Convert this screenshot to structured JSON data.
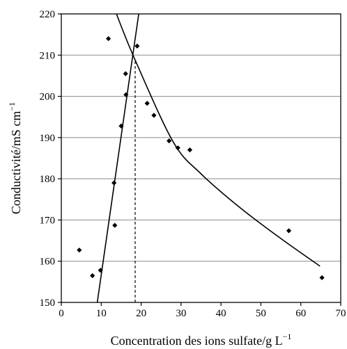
{
  "chart_data": {
    "type": "scatter",
    "xlabel": "Concentration des ions sulfate/g L",
    "xlabel_sup": "−1",
    "ylabel": "Conductivité/mS cm",
    "ylabel_sup": "−1",
    "xlim": [
      0,
      70
    ],
    "ylim": [
      150,
      220
    ],
    "xticks": [
      "0",
      "10",
      "20",
      "30",
      "40",
      "50",
      "60",
      "70"
    ],
    "yticks": [
      "150",
      "160",
      "170",
      "180",
      "190",
      "200",
      "210",
      "220"
    ],
    "grid": "horizontal",
    "points": [
      {
        "x": 4.5,
        "y": 162.7
      },
      {
        "x": 7.8,
        "y": 156.5
      },
      {
        "x": 9.8,
        "y": 157.8
      },
      {
        "x": 11.8,
        "y": 214.0
      },
      {
        "x": 13.2,
        "y": 179.0
      },
      {
        "x": 13.4,
        "y": 168.7
      },
      {
        "x": 15.0,
        "y": 192.8
      },
      {
        "x": 16.1,
        "y": 205.5
      },
      {
        "x": 16.2,
        "y": 200.4
      },
      {
        "x": 19.0,
        "y": 212.2
      },
      {
        "x": 21.5,
        "y": 198.3
      },
      {
        "x": 23.2,
        "y": 195.4
      },
      {
        "x": 27.0,
        "y": 189.2
      },
      {
        "x": 29.2,
        "y": 187.5
      },
      {
        "x": 32.2,
        "y": 187.0
      },
      {
        "x": 57.0,
        "y": 167.4
      },
      {
        "x": 65.3,
        "y": 156.0
      }
    ],
    "fits": [
      {
        "kind": "line",
        "points": [
          [
            9.0,
            150.0
          ],
          [
            19.4,
            220.0
          ]
        ]
      },
      {
        "kind": "curve",
        "points": [
          [
            13.8,
            220.0
          ],
          [
            18.5,
            208.8
          ],
          [
            28.0,
            189.0
          ],
          [
            35.0,
            181.2
          ],
          [
            45.0,
            172.8
          ],
          [
            55.0,
            165.5
          ],
          [
            64.8,
            158.8
          ]
        ]
      }
    ],
    "guide": {
      "x": 18.5,
      "y_from": 150,
      "y_to": 208.8,
      "style": "dashed"
    }
  }
}
